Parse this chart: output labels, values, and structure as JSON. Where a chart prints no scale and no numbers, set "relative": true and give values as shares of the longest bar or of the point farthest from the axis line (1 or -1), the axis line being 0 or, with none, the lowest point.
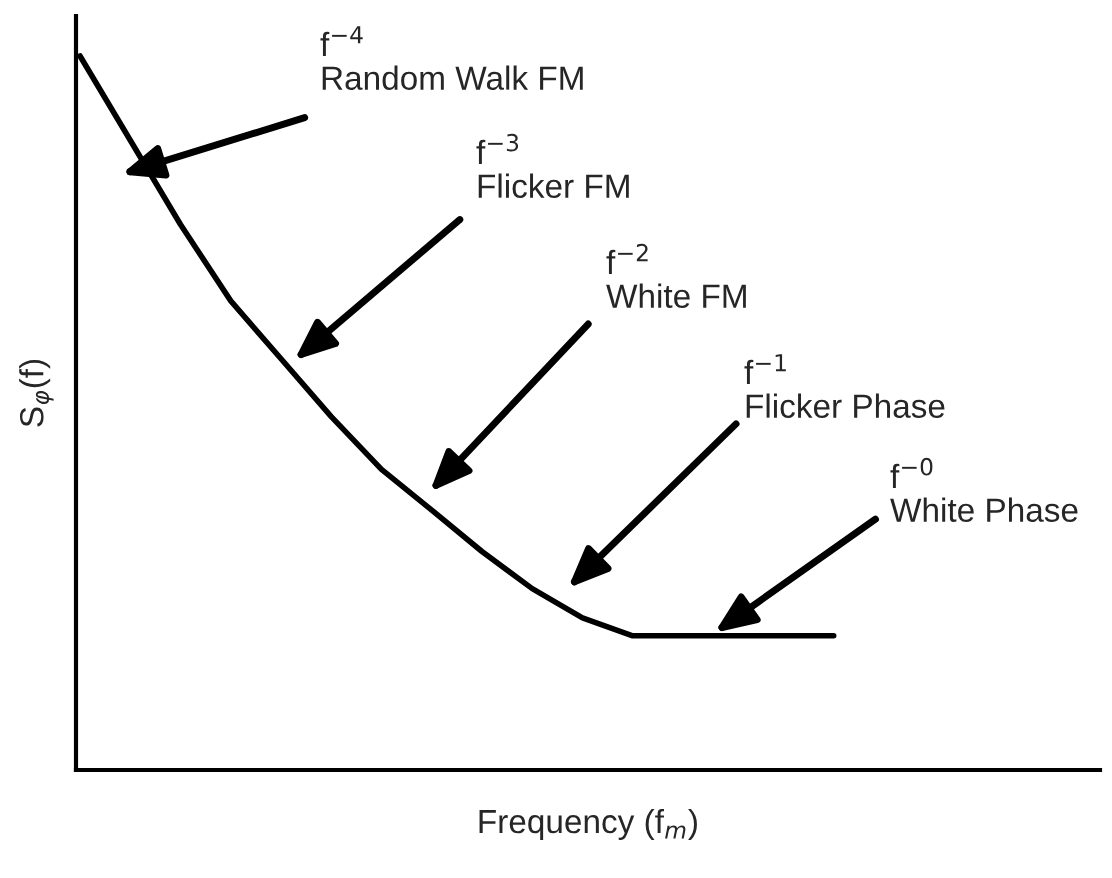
{
  "chart_data": {
    "type": "line",
    "relative": true,
    "xlabel": "Frequency (f$_{m}$)",
    "ylabel": "S$_{φ}$(f)",
    "tick_labels": false,
    "grid": false,
    "legend": false,
    "marker": "none",
    "line_style": "solid",
    "categories": [
      null,
      null,
      null,
      null,
      null,
      null,
      null,
      null,
      null,
      null,
      null,
      null,
      null,
      null,
      null,
      null,
      null,
      null,
      null,
      null,
      null
    ],
    "series": [
      {
        "color": "#000000",
        "values": [
          1,
          0.882,
          0.764,
          0.657,
          0.576,
          0.495,
          0.421,
          0.364,
          0.306,
          0.254,
          0.213,
          0.188,
          0.188,
          0.188,
          0.188,
          0.188,
          null,
          null,
          null,
          null,
          null
        ]
      }
    ],
    "annotations": [
      "f$^{−4}$\nRandom Walk FM",
      "f$^{−3}$\nFlicker FM",
      "f$^{−2}$\nWhite FM",
      "f$^{−1}$\nFlicker Phase",
      "f$^{−0}$\nWhite Phase"
    ]
  }
}
